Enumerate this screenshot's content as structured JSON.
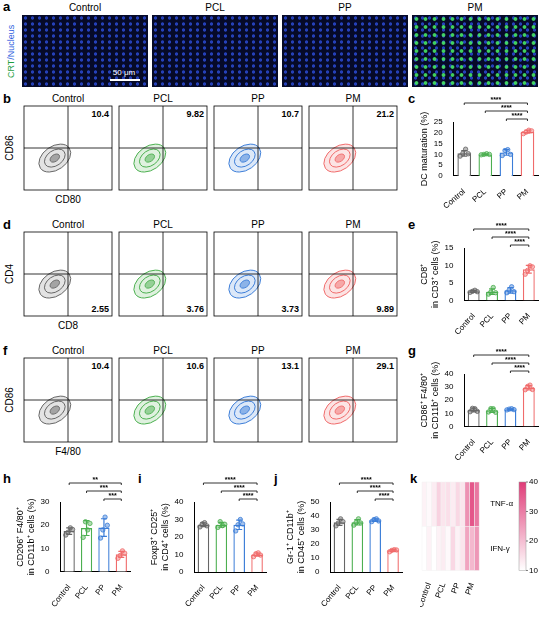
{
  "figure": {
    "a": {
      "letter": "a",
      "stain_label": "CRT/Nucleus",
      "scale_bar": "50 μm",
      "groups": [
        "Control",
        "PCL",
        "PP",
        "PM"
      ]
    },
    "flow": [
      {
        "letter": "b",
        "x_label": "CD80",
        "y_label": "CD86",
        "groups": [
          "Control",
          "PCL",
          "PP",
          "PM"
        ],
        "values": [
          10.4,
          9.82,
          10.7,
          21.2
        ],
        "colors": [
          "#666666",
          "#4caf50",
          "#3b7dd8",
          "#f06b6b"
        ]
      },
      {
        "letter": "d",
        "x_label": "CD8",
        "y_label": "CD4",
        "groups": [
          "Control",
          "PCL",
          "PP",
          "PM"
        ],
        "values": [
          2.55,
          3.76,
          3.73,
          9.89
        ],
        "colors": [
          "#666666",
          "#4caf50",
          "#3b7dd8",
          "#f06b6b"
        ]
      },
      {
        "letter": "f",
        "x_label": "F4/80",
        "y_label": "CD86",
        "groups": [
          "Control",
          "PCL",
          "PP",
          "PM"
        ],
        "values": [
          10.4,
          10.6,
          13.1,
          29.1
        ],
        "colors": [
          "#666666",
          "#4caf50",
          "#3b7dd8",
          "#f06b6b"
        ]
      }
    ]
  },
  "chart_data": [
    {
      "letter": "c",
      "type": "bar",
      "y_label": "DC maturation (%)",
      "categories": [
        "Control",
        "PCL",
        "PP",
        "PM"
      ],
      "values": [
        10.5,
        10.0,
        10.9,
        20.5
      ],
      "errors": [
        1.3,
        0.2,
        1.3,
        0.7
      ],
      "points": [
        [
          9.2,
          10.5,
          12.4,
          10.3
        ],
        [
          9.8,
          10.0,
          10.3,
          10.0
        ],
        [
          9.5,
          11.8,
          12.2,
          10.0
        ],
        [
          19.6,
          20.3,
          21.2,
          20.9
        ]
      ],
      "colors": [
        "#666666",
        "#4caf50",
        "#3b7dd8",
        "#f06b6b"
      ],
      "ylim": [
        0,
        25
      ],
      "yticks": [
        0,
        5,
        10,
        15,
        20,
        25
      ],
      "grid": false,
      "significance": [
        {
          "from": "Control",
          "to": "PM",
          "label": "****"
        },
        {
          "from": "PCL",
          "to": "PM",
          "label": "****"
        },
        {
          "from": "PP",
          "to": "PM",
          "label": "****"
        }
      ]
    },
    {
      "letter": "e",
      "type": "bar",
      "y_label": "CD8⁺ in CD3⁺ cells (%)",
      "categories": [
        "Control",
        "PCL",
        "PP",
        "PM"
      ],
      "values": [
        2.6,
        2.5,
        2.9,
        8.9
      ],
      "errors": [
        0.3,
        0.8,
        0.8,
        1.1
      ],
      "points": [
        [
          2.3,
          2.6,
          2.9,
          2.5
        ],
        [
          1.8,
          2.4,
          3.7,
          2.2
        ],
        [
          2.2,
          3.0,
          3.9,
          2.5
        ],
        [
          7.5,
          8.6,
          9.9,
          9.6
        ]
      ],
      "colors": [
        "#666666",
        "#4caf50",
        "#3b7dd8",
        "#f06b6b"
      ],
      "ylim": [
        0,
        15
      ],
      "yticks": [
        0,
        5,
        10,
        15
      ],
      "grid": false,
      "significance": [
        {
          "from": "Control",
          "to": "PM",
          "label": "****"
        },
        {
          "from": "PCL",
          "to": "PM",
          "label": "****"
        },
        {
          "from": "PP",
          "to": "PM",
          "label": "****"
        }
      ]
    },
    {
      "letter": "g",
      "type": "bar",
      "y_label": "CD86⁺ F4/80⁺ in CD11b⁺ cells (%)",
      "categories": [
        "Control",
        "PCL",
        "PP",
        "PM"
      ],
      "values": [
        12.5,
        12.2,
        13.0,
        29.5
      ],
      "errors": [
        1.4,
        1.5,
        0.4,
        1.7
      ],
      "points": [
        [
          11.2,
          13.8,
          13.5,
          11.5
        ],
        [
          11.0,
          13.6,
          13.5,
          10.8
        ],
        [
          12.6,
          13.2,
          13.5,
          12.8
        ],
        [
          28.0,
          30.5,
          31.5,
          28.2
        ]
      ],
      "colors": [
        "#666666",
        "#4caf50",
        "#3b7dd8",
        "#f06b6b"
      ],
      "ylim": [
        0,
        40
      ],
      "yticks": [
        0,
        10,
        20,
        30,
        40
      ],
      "grid": false,
      "significance": [
        {
          "from": "Control",
          "to": "PM",
          "label": "****"
        },
        {
          "from": "PCL",
          "to": "PM",
          "label": "****"
        },
        {
          "from": "PP",
          "to": "PM",
          "label": "****"
        }
      ]
    },
    {
      "letter": "h",
      "type": "bar",
      "y_label": "CD206⁺ F4/80⁺ in CD11b⁺ cells (%)",
      "categories": [
        "Control",
        "PCL",
        "PP",
        "PM"
      ],
      "values": [
        17.5,
        18.8,
        19.0,
        7.5
      ],
      "errors": [
        1.4,
        3.2,
        3.8,
        1.3
      ],
      "points": [
        [
          15.8,
          17.0,
          18.9,
          18.2
        ],
        [
          14.8,
          21.5,
          18.0,
          20.8
        ],
        [
          14.5,
          18.0,
          23.5,
          20.0
        ],
        [
          5.8,
          7.0,
          9.0,
          8.0
        ]
      ],
      "colors": [
        "#666666",
        "#4caf50",
        "#3b7dd8",
        "#f06b6b"
      ],
      "ylim": [
        0,
        30
      ],
      "yticks": [
        0,
        10,
        20,
        30
      ],
      "grid": false,
      "significance": [
        {
          "from": "Control",
          "to": "PM",
          "label": "**"
        },
        {
          "from": "PCL",
          "to": "PM",
          "label": "***"
        },
        {
          "from": "PP",
          "to": "PM",
          "label": "***"
        }
      ]
    },
    {
      "letter": "i",
      "type": "bar",
      "y_label": "Foxp3⁺ CD25⁺ in CD4⁺ cells (%)",
      "categories": [
        "Control",
        "PCL",
        "PP",
        "PM"
      ],
      "values": [
        27.0,
        27.0,
        27.0,
        10.0
      ],
      "errors": [
        1.1,
        1.4,
        2.7,
        0.9
      ],
      "points": [
        [
          25.8,
          27.5,
          28.2,
          26.4
        ],
        [
          25.5,
          28.8,
          26.5,
          27.3
        ],
        [
          23.5,
          27.0,
          30.0,
          27.5
        ],
        [
          8.8,
          10.5,
          11.0,
          9.7
        ]
      ],
      "colors": [
        "#666666",
        "#4caf50",
        "#3b7dd8",
        "#f06b6b"
      ],
      "ylim": [
        0,
        40
      ],
      "yticks": [
        0,
        10,
        20,
        30,
        40
      ],
      "grid": false,
      "significance": [
        {
          "from": "Control",
          "to": "PM",
          "label": "****"
        },
        {
          "from": "PCL",
          "to": "PM",
          "label": "****"
        },
        {
          "from": "PP",
          "to": "PM",
          "label": "****"
        }
      ]
    },
    {
      "letter": "j",
      "type": "bar",
      "y_label": "Gr-1⁺ CD11b⁺ in CD45⁺ cells (%)",
      "categories": [
        "Control",
        "PCL",
        "PP",
        "PM"
      ],
      "values": [
        35.5,
        35.5,
        37.0,
        15.5
      ],
      "errors": [
        2.1,
        1.9,
        0.9,
        0.7
      ],
      "points": [
        [
          33.0,
          35.0,
          38.0,
          36.0
        ],
        [
          33.5,
          35.5,
          38.0,
          35.0
        ],
        [
          36.0,
          37.5,
          38.0,
          36.5
        ],
        [
          14.5,
          15.5,
          16.0,
          15.8
        ]
      ],
      "colors": [
        "#666666",
        "#4caf50",
        "#3b7dd8",
        "#f06b6b"
      ],
      "ylim": [
        0,
        50
      ],
      "yticks": [
        0,
        10,
        20,
        30,
        40,
        50
      ],
      "grid": false,
      "significance": [
        {
          "from": "Control",
          "to": "PM",
          "label": "****"
        },
        {
          "from": "PCL",
          "to": "PM",
          "label": "****"
        },
        {
          "from": "PP",
          "to": "PM",
          "label": "****"
        }
      ]
    },
    {
      "letter": "k",
      "type": "heatmap",
      "categories": [
        null,
        "Control",
        null,
        null,
        "PCL",
        null,
        null,
        "PP",
        null,
        null,
        "PM",
        null
      ],
      "rows": [
        "TNF-α",
        "IFN-γ"
      ],
      "cells": [
        [
          12,
          11,
          13,
          17,
          14,
          15,
          13,
          16,
          14,
          27,
          36,
          31
        ],
        [
          10,
          12,
          10,
          12,
          13,
          11,
          16,
          12,
          14,
          24,
          21,
          26
        ]
      ],
      "color": "#e03c78",
      "colorbar": {
        "range": [
          10,
          40
        ],
        "ticks": [
          10,
          20,
          30,
          40
        ]
      }
    }
  ]
}
